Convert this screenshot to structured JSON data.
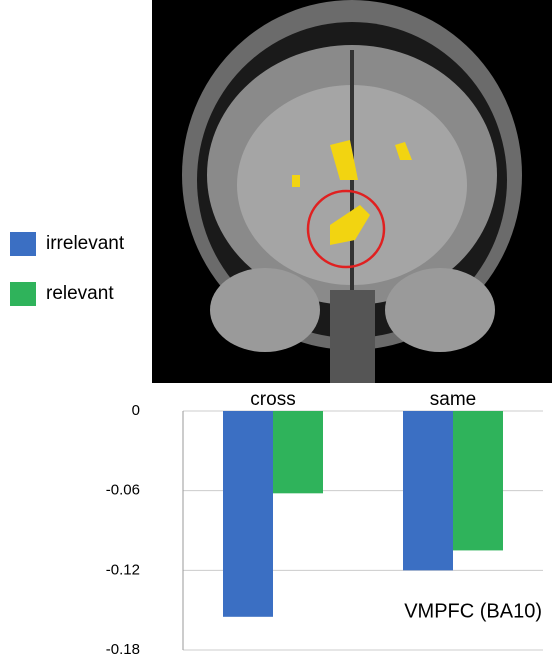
{
  "chart_data": {
    "type": "bar",
    "categories": [
      "cross",
      "same"
    ],
    "series": [
      {
        "name": "irrelevant",
        "color": "#3b6fc3",
        "values": [
          -0.155,
          -0.12
        ]
      },
      {
        "name": "relevant",
        "color": "#2fb35b",
        "values": [
          -0.062,
          -0.105
        ]
      }
    ],
    "ylim": [
      -0.18,
      0
    ],
    "yticks": [
      0,
      -0.06,
      -0.12,
      -0.18
    ],
    "grid": true,
    "annotation": "VMPFC (BA10)"
  }
}
